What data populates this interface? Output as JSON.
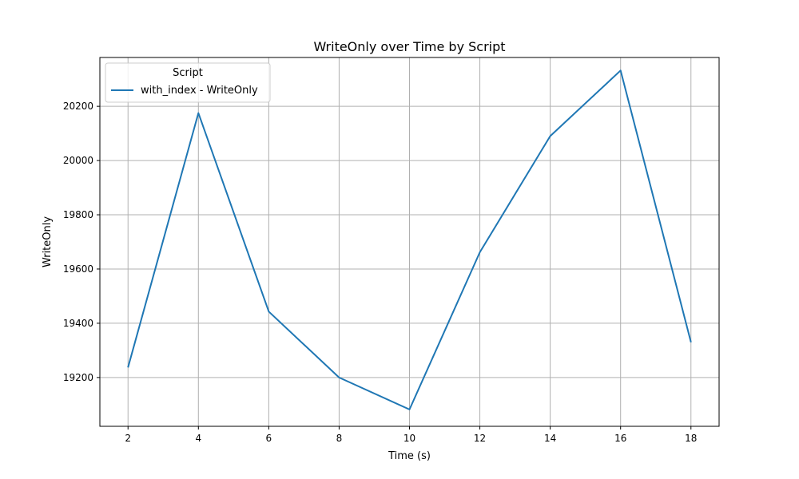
{
  "chart_data": {
    "type": "line",
    "title": "WriteOnly over Time by Script",
    "xlabel": "Time (s)",
    "ylabel": "WriteOnly",
    "xlim": [
      1.2,
      18.8
    ],
    "ylim": [
      19020,
      20380
    ],
    "xticks": [
      2,
      4,
      6,
      8,
      10,
      12,
      14,
      16,
      18
    ],
    "yticks": [
      19200,
      19400,
      19600,
      19800,
      20000,
      20200
    ],
    "grid": true,
    "legend": {
      "title": "Script",
      "placement": "top-left"
    },
    "series": [
      {
        "name": "with_index - WriteOnly",
        "color": "#1f77b4",
        "x": [
          2,
          4,
          6,
          8,
          10,
          12,
          14,
          16,
          18
        ],
        "y": [
          19237,
          20175,
          19443,
          19200,
          19082,
          19662,
          20090,
          20332,
          19330
        ]
      }
    ]
  }
}
